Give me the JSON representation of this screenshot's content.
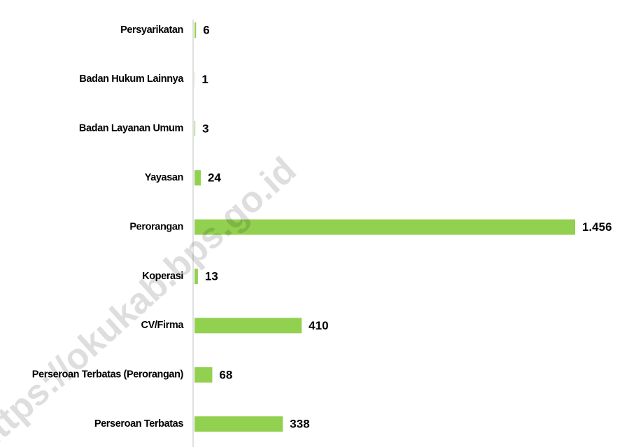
{
  "chart_data": {
    "type": "hbar",
    "categories": [
      "Persyarikatan",
      "Badan Hukum Lainnya",
      "Badan Layanan Umum",
      "Yayasan",
      "Perorangan",
      "Koperasi",
      "CV/Firma",
      "Perseroan Terbatas (Perorangan)",
      "Perseroan Terbatas"
    ],
    "values": [
      6,
      1,
      3,
      24,
      1456,
      13,
      410,
      68,
      338
    ],
    "value_labels": [
      "6",
      "1",
      "3",
      "24",
      "1.456",
      "13",
      "410",
      "68",
      "338"
    ],
    "color": "#92d050",
    "watermark": "https://okukab.bps.go.id"
  }
}
